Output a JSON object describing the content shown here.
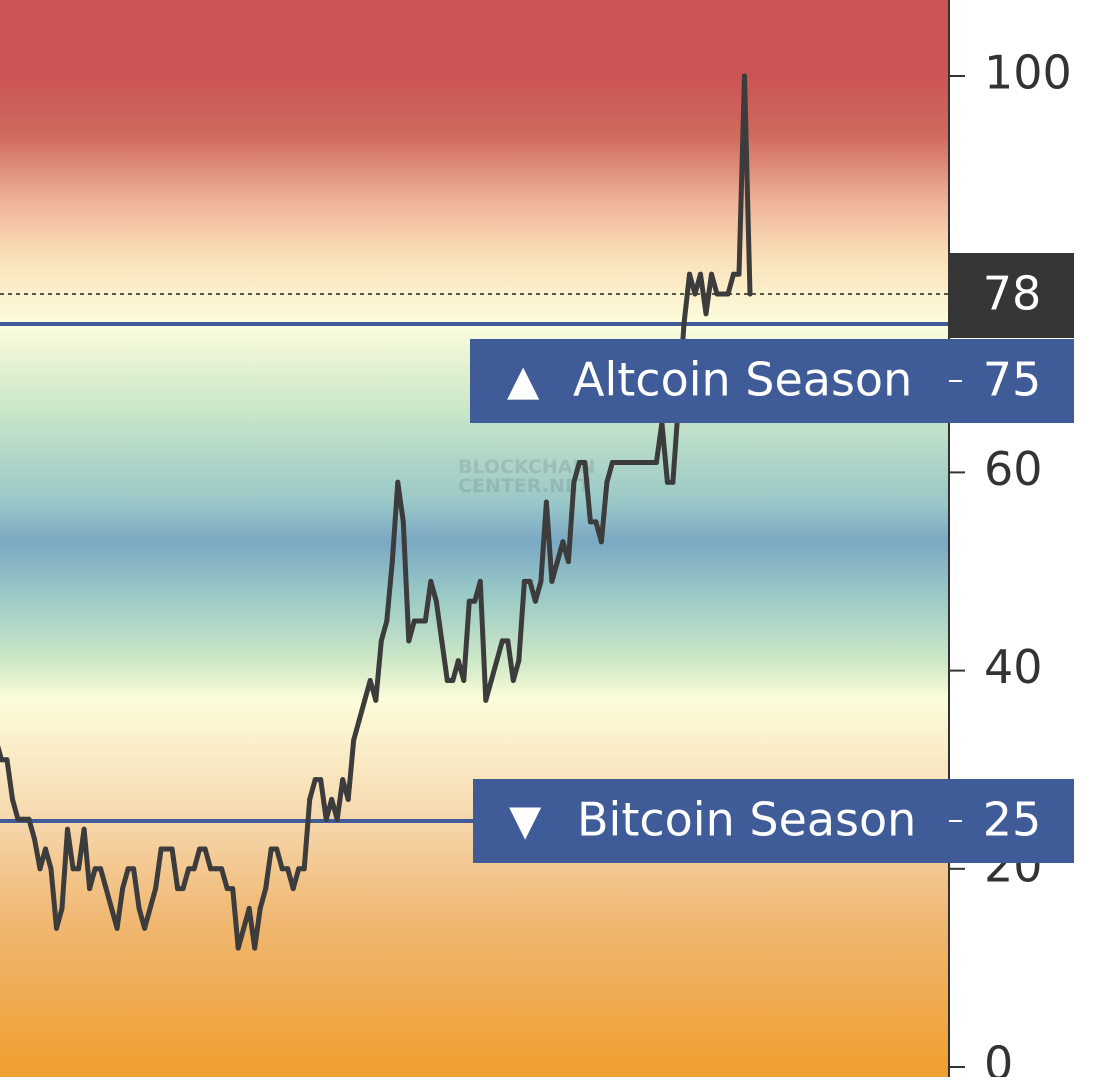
{
  "watermark": [
    "BLOCKCHAIN",
    "CENTER.NET"
  ],
  "chart_data": {
    "type": "line",
    "title": "",
    "xlabel": "",
    "ylabel": "",
    "ylim": [
      0,
      100
    ],
    "yticks": [
      0,
      20,
      40,
      60,
      100
    ],
    "current_value": 78,
    "current_label": "78",
    "thresholds": [
      {
        "label": "Altcoin Season",
        "value": 75,
        "value_label": "75",
        "symbol": "▲"
      },
      {
        "label": "Bitcoin Season",
        "value": 25,
        "value_label": "25",
        "symbol": "▼"
      }
    ],
    "background_gradient": [
      {
        "value": 100,
        "color": "#cb5555"
      },
      {
        "value": 94,
        "color": "#cf6a5d"
      },
      {
        "value": 87,
        "color": "#f0b69a"
      },
      {
        "value": 82,
        "color": "#fadfb6"
      },
      {
        "value": 75,
        "color": "#fcfddd"
      },
      {
        "value": 66,
        "color": "#c8e5c8"
      },
      {
        "value": 57,
        "color": "#9ac8c8"
      },
      {
        "value": 53,
        "color": "#7ba8c3"
      },
      {
        "value": 48,
        "color": "#97c7c6"
      },
      {
        "value": 41,
        "color": "#cde8c6"
      },
      {
        "value": 37,
        "color": "#fcfdda"
      },
      {
        "value": 25,
        "color": "#f6d7ad"
      },
      {
        "value": 15,
        "color": "#f0b873"
      },
      {
        "value": 0,
        "color": "#f0a033"
      }
    ],
    "colors": {
      "line": "#3c3c3c",
      "threshold": "#3f5c98",
      "axis": "#333333",
      "current_box": "#363636"
    },
    "series": [
      {
        "values": [
          33,
          31,
          31,
          27,
          25,
          25,
          25,
          23,
          20,
          22,
          20,
          14,
          16,
          24,
          20,
          20,
          24,
          18,
          20,
          20,
          18,
          16,
          14,
          18,
          20,
          20,
          16,
          14,
          16,
          18,
          22,
          22,
          22,
          18,
          18,
          20,
          20,
          22,
          22,
          20,
          20,
          20,
          18,
          18,
          12,
          14,
          16,
          12,
          16,
          18,
          22,
          22,
          20,
          20,
          18,
          20,
          20,
          27,
          29,
          29,
          25,
          27,
          25,
          29,
          27,
          33,
          35,
          37,
          39,
          37,
          43,
          45,
          51,
          59,
          55,
          43,
          45,
          45,
          45,
          49,
          47,
          43,
          39,
          39,
          41,
          39,
          47,
          47,
          49,
          37,
          39,
          41,
          43,
          43,
          39,
          41,
          49,
          49,
          47,
          49,
          57,
          49,
          51,
          53,
          51,
          59,
          61,
          61,
          55,
          55,
          53,
          59,
          61,
          61,
          61,
          61,
          61,
          61,
          61,
          61,
          61,
          65,
          59,
          59,
          67,
          75,
          80,
          78,
          80,
          76,
          80,
          78,
          78,
          78,
          80,
          80,
          100,
          78
        ]
      }
    ]
  }
}
